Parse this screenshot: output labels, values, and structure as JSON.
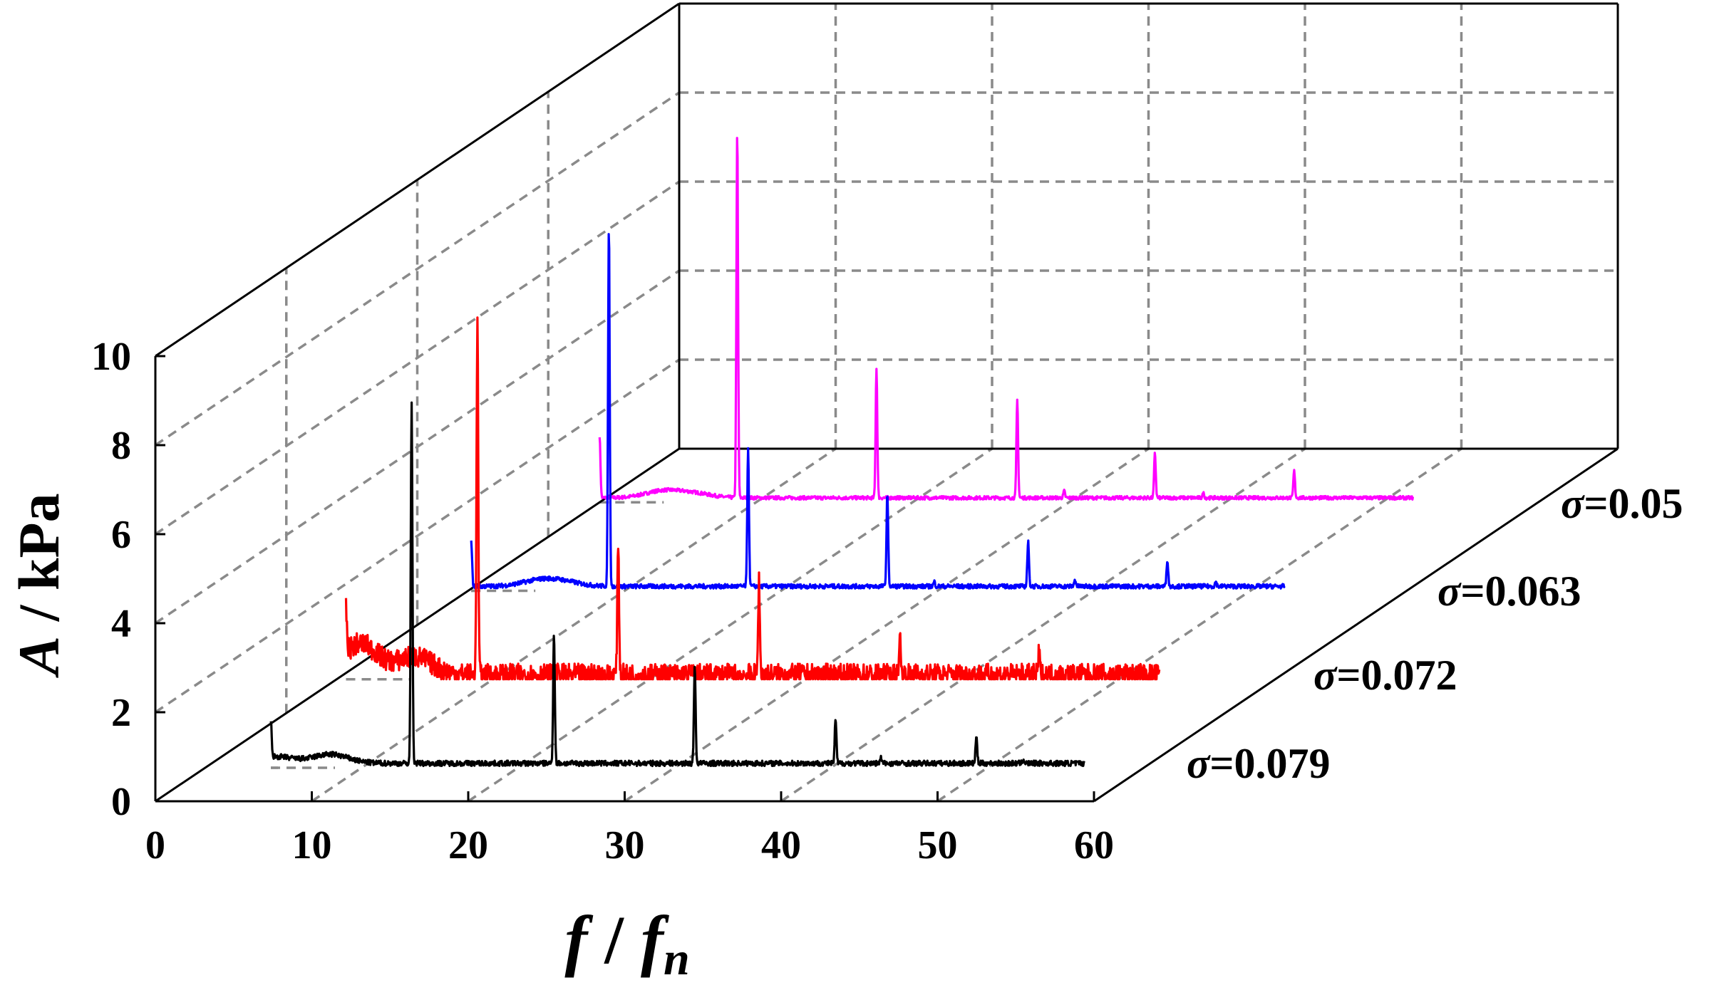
{
  "chart_data": {
    "type": "line",
    "projection": "3d-waterfall",
    "xlabel": {
      "main": "f",
      "sep": " / ",
      "base": "f",
      "sub": "n"
    },
    "ylabel": {
      "italic": "A",
      "rest": " / kPa"
    },
    "xlim": [
      0,
      60
    ],
    "ylim": [
      0,
      10
    ],
    "x_ticks": [
      0,
      10,
      20,
      30,
      40,
      50,
      60
    ],
    "y_ticks": [
      0,
      2,
      4,
      6,
      8,
      10
    ],
    "grid": "dashed",
    "series": [
      {
        "name": "σ=0.079",
        "symbol": "σ",
        "value": "=0.079",
        "color": "#000000",
        "baseline": 0.1,
        "noise_amp": 0.06,
        "floor_hump": [
          [
            4.5,
            0.15
          ],
          [
            8,
            0.2
          ]
        ],
        "peaks": [
          [
            4.2,
            0.8
          ],
          [
            13.2,
            8.1
          ],
          [
            22.3,
            2.9
          ],
          [
            31.3,
            2.2
          ],
          [
            40.3,
            1.0
          ],
          [
            43.2,
            0.12
          ],
          [
            49.3,
            0.6
          ],
          [
            52.3,
            0.1
          ],
          [
            58.3,
            0.3
          ]
        ]
      },
      {
        "name": "σ=0.072",
        "symbol": "σ",
        "value": "=0.072",
        "color": "#ff0000",
        "baseline": 0.1,
        "noise_amp": 0.25,
        "floor_hump": [
          [
            1.5,
            0.7
          ],
          [
            5,
            0.4
          ]
        ],
        "peaks": [
          [
            0.6,
            1.0
          ],
          [
            9.0,
            8.0
          ],
          [
            18.0,
            3.0
          ],
          [
            27.0,
            2.1
          ],
          [
            36.0,
            0.9
          ],
          [
            44.9,
            0.5
          ],
          [
            53.8,
            0.2
          ]
        ]
      },
      {
        "name": "σ=0.063",
        "symbol": "σ",
        "value": "=0.063",
        "color": "#0000ff",
        "baseline": 0.1,
        "noise_amp": 0.05,
        "floor_hump": [
          [
            4.5,
            0.12
          ],
          [
            6,
            0.1
          ]
        ],
        "peaks": [
          [
            0.2,
            1.0
          ],
          [
            9.0,
            8.1
          ],
          [
            17.9,
            3.1
          ],
          [
            26.8,
            2.1
          ],
          [
            29.8,
            0.1
          ],
          [
            35.8,
            1.0
          ],
          [
            38.8,
            0.15
          ],
          [
            44.7,
            0.6
          ],
          [
            47.8,
            0.1
          ],
          [
            53.6,
            0.3
          ],
          [
            56.6,
            0.05
          ]
        ]
      },
      {
        "name": "σ=0.05",
        "symbol": "σ",
        "value": "=0.05",
        "color": "#ff00ff",
        "baseline": 0.1,
        "noise_amp": 0.04,
        "floor_hump": [
          [
            4.0,
            0.15
          ],
          [
            6,
            0.1
          ]
        ],
        "peaks": [
          [
            0.0,
            1.4
          ],
          [
            8.8,
            8.2
          ],
          [
            17.7,
            2.9
          ],
          [
            26.7,
            2.2
          ],
          [
            29.7,
            0.15
          ],
          [
            35.5,
            1.0
          ],
          [
            38.6,
            0.1
          ],
          [
            44.4,
            0.6
          ],
          [
            53.3,
            0.3
          ],
          [
            56.3,
            0.05
          ]
        ]
      }
    ]
  }
}
